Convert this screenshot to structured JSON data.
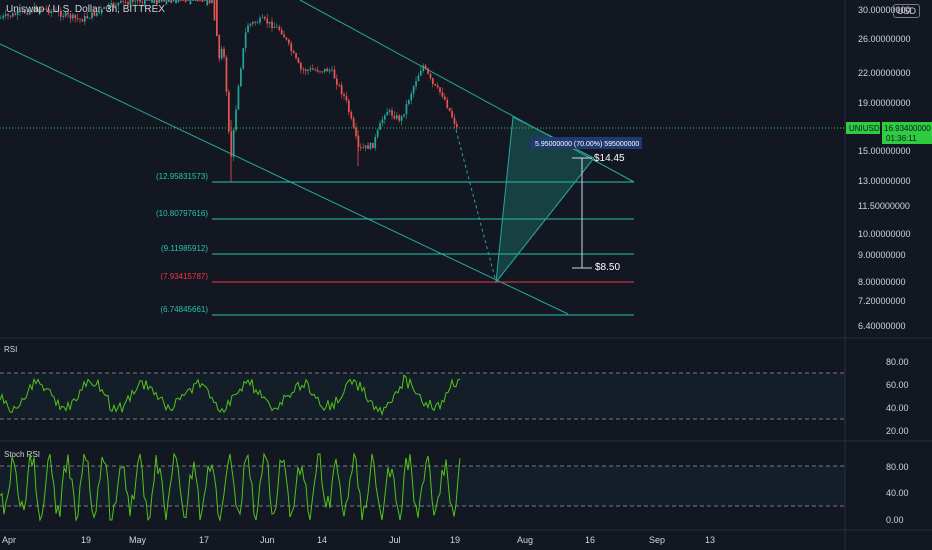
{
  "header": {
    "title": "Uniswap / U.S. Dollar, 3h, BITTREX",
    "currency_button": "USD"
  },
  "colors": {
    "bg": "#131722",
    "up": "#26a69a",
    "down": "#ef5350",
    "teal": "#22ab94",
    "fib": "#26c6a8",
    "fib_red": "#f23645",
    "rsi": "#52c41a",
    "price_tag": "#2ecc40",
    "measure": "#1e3a6e"
  },
  "price_axis": {
    "ticks": [
      "30.00000000",
      "26.00000000",
      "22.00000000",
      "19.00000000",
      "15.00000000",
      "13.00000000",
      "11.50000000",
      "10.00000000",
      "9.00000000",
      "8.00000000",
      "7.20000000",
      "6.40000000"
    ],
    "current_symbol": "UNIUSD",
    "current_price": "16.93400000",
    "current_timer": "01:36:11"
  },
  "time_axis": {
    "labels": [
      "Apr",
      "19",
      "May",
      "17",
      "Jun",
      "14",
      "Jul",
      "19",
      "Aug",
      "16",
      "Sep",
      "13"
    ]
  },
  "fib_levels": [
    {
      "label": "(12.95831573)",
      "price": 12.95831573
    },
    {
      "label": "(10.80797616)",
      "price": 10.80797616
    },
    {
      "label": "(9.11985912)",
      "price": 9.11985912
    },
    {
      "label": "(7.93415787)",
      "price": 7.93415787
    },
    {
      "label": "(6.74845661)",
      "price": 6.74845661
    }
  ],
  "annotations": {
    "measure_box": "5.95000000 (70.00%) 595000000",
    "target_high": "$14.45",
    "target_low": "$8.50"
  },
  "rsi": {
    "title": "RSI",
    "ticks": [
      "80.00",
      "60.00",
      "40.00",
      "20.00"
    ]
  },
  "stoch": {
    "title": "Stoch RSI",
    "ticks": [
      "80.00",
      "40.00",
      "0.00"
    ]
  },
  "chart_data": {
    "type": "line",
    "title": "Uniswap / U.S. Dollar, 3h, BITTREX",
    "ylabel": "",
    "xlabel": "",
    "y_scale": "log",
    "ylim": [
      6.2,
      31
    ],
    "series": [
      {
        "dates": [
          "Apr 1",
          "Apr 19",
          "May 1",
          "May 17",
          "May 20",
          "May 23",
          "Jun 1",
          "Jun 14",
          "Jun 22",
          "Jul 1",
          "Jul 10",
          "Jul 17"
        ],
        "values": [
          31.5,
          31,
          38,
          30,
          14,
          22,
          27,
          20.5,
          16,
          18.5,
          22.5,
          16.9
        ]
      }
    ]
  }
}
